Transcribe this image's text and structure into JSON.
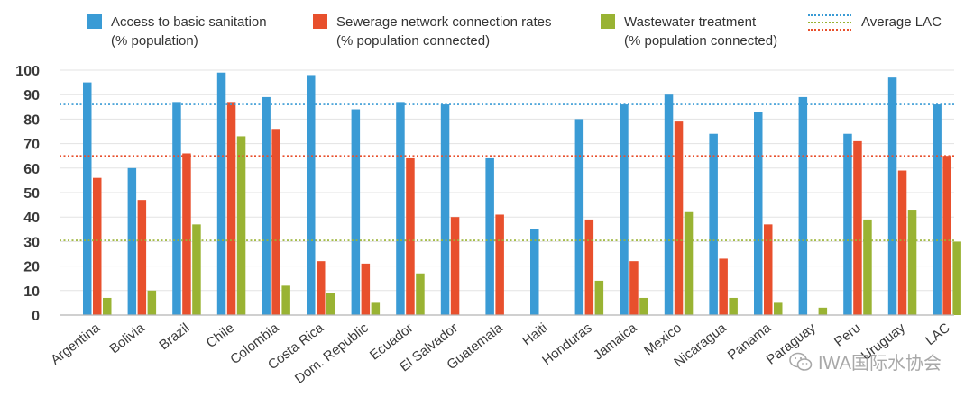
{
  "legend": {
    "access": {
      "line1": "Access to basic sanitation",
      "line2": "(% population)"
    },
    "sewerage": {
      "line1": "Sewerage network connection rates",
      "line2": "(% population connected)"
    },
    "wastewater": {
      "line1": "Wastewater treatment",
      "line2": "(% population connected)"
    },
    "average": "Average LAC"
  },
  "watermark": {
    "text": "IWA国际水协会",
    "icon": "wechat-logo-icon"
  },
  "colors": {
    "access": "#3a9bd5",
    "sewerage": "#e8502d",
    "wastewater": "#99b333",
    "grid": "#e3e3e3",
    "axis": "#b5b5b5",
    "tick": "#3a3a3a"
  },
  "chart_data": {
    "type": "bar",
    "title": "",
    "xlabel": "",
    "ylabel": "",
    "ylim": [
      0,
      100
    ],
    "yticks": [
      0,
      10,
      20,
      30,
      40,
      50,
      60,
      70,
      80,
      90,
      100
    ],
    "categories": [
      "Argentina",
      "Bolivia",
      "Brazil",
      "Chile",
      "Colombia",
      "Costa Rica",
      "Dom. Republic",
      "Ecuador",
      "El Salvador",
      "Guatemala",
      "Haiti",
      "Honduras",
      "Jamaica",
      "Mexico",
      "Nicaragua",
      "Panama",
      "Paraguay",
      "Peru",
      "Uruguay",
      "LAC"
    ],
    "series": [
      {
        "name": "Access to basic sanitation (% population)",
        "color": "#3a9bd5",
        "values": [
          95,
          60,
          87,
          99,
          89,
          98,
          84,
          87,
          86,
          64,
          35,
          80,
          86,
          90,
          74,
          83,
          89,
          74,
          97,
          86
        ]
      },
      {
        "name": "Sewerage network connection rates (% population connected)",
        "color": "#e8502d",
        "values": [
          56,
          47,
          66,
          87,
          76,
          22,
          21,
          64,
          40,
          41,
          null,
          39,
          22,
          79,
          23,
          37,
          null,
          71,
          59,
          65
        ]
      },
      {
        "name": "Wastewater treatment (% population connected)",
        "color": "#99b333",
        "values": [
          7,
          10,
          37,
          73,
          12,
          9,
          5,
          17,
          null,
          null,
          null,
          14,
          7,
          42,
          7,
          5,
          3,
          39,
          43,
          30
        ]
      }
    ],
    "average_lines": [
      {
        "name": "Average LAC - Access to basic sanitation",
        "value": 86,
        "color": "#3a9bd5"
      },
      {
        "name": "Average LAC - Sewerage network connection rates",
        "value": 65,
        "color": "#e8502d"
      },
      {
        "name": "Average LAC - Wastewater treatment",
        "value": 30.5,
        "color": "#99b333"
      }
    ],
    "grid": true,
    "legend_position": "top"
  }
}
